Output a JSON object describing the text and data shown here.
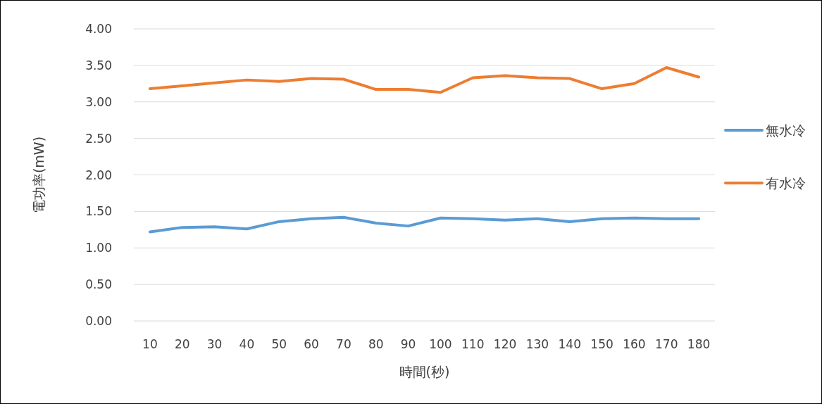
{
  "chart_data": {
    "type": "line",
    "xlabel": "時間(秒)",
    "ylabel": "電功率(mW)",
    "categories": [
      "10",
      "20",
      "30",
      "40",
      "50",
      "60",
      "70",
      "80",
      "90",
      "100",
      "110",
      "120",
      "130",
      "140",
      "150",
      "160",
      "170",
      "180"
    ],
    "series": [
      {
        "name": "無水冷",
        "color": "#5b9bd5",
        "values": [
          1.22,
          1.28,
          1.29,
          1.26,
          1.36,
          1.4,
          1.42,
          1.34,
          1.3,
          1.41,
          1.4,
          1.38,
          1.4,
          1.36,
          1.4,
          1.41,
          1.4,
          1.4
        ]
      },
      {
        "name": "有水冷",
        "color": "#ed7d31",
        "values": [
          3.18,
          3.22,
          3.26,
          3.3,
          3.28,
          3.32,
          3.31,
          3.17,
          3.17,
          3.13,
          3.33,
          3.36,
          3.33,
          3.32,
          3.18,
          3.25,
          3.47,
          3.34
        ]
      }
    ],
    "ylim": [
      0,
      4
    ],
    "yticks": [
      {
        "value": 0,
        "label": "0.00"
      },
      {
        "value": 0.5,
        "label": "0.50"
      },
      {
        "value": 1,
        "label": "1.00"
      },
      {
        "value": 1.5,
        "label": "1.50"
      },
      {
        "value": 2,
        "label": "2.00"
      },
      {
        "value": 2.5,
        "label": "2.50"
      },
      {
        "value": 3,
        "label": "3.00"
      },
      {
        "value": 3.5,
        "label": "3.50"
      },
      {
        "value": 4,
        "label": "4.00"
      }
    ],
    "grid": "y",
    "legend": "right",
    "marker": "none",
    "line_style": "solid"
  }
}
